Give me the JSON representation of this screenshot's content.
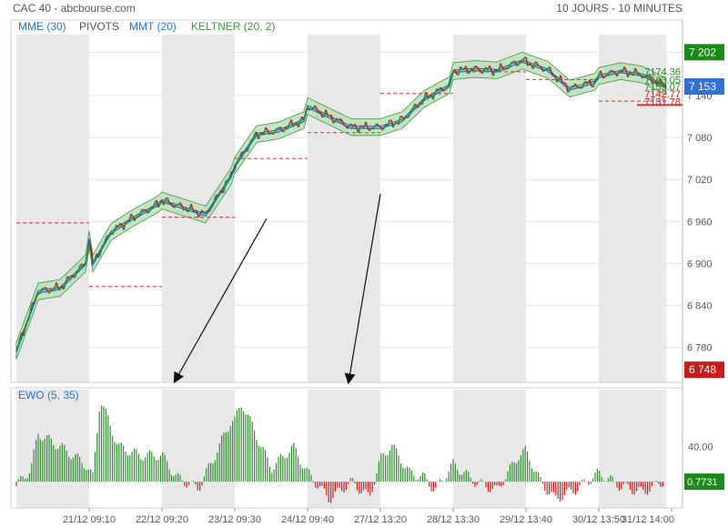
{
  "header": {
    "title": "CAC 40 - abcbourse.com",
    "period": "10 JOURS - 10 MINUTES"
  },
  "legend": [
    {
      "label": "MME (30)",
      "color": "#1f78d1"
    },
    {
      "label": "PIVOTS",
      "color": "#555555"
    },
    {
      "label": "MMT (20)",
      "color": "#1f78d1"
    },
    {
      "label": "KELTNER (20, 2)",
      "color": "#3a9a3a"
    }
  ],
  "badges": [
    {
      "label": "7 202",
      "value": 7202,
      "color": "#1b8a1b"
    },
    {
      "label": "7 153",
      "value": 7153,
      "color": "#2f6fd6"
    },
    {
      "label": "6 748",
      "value": 6748,
      "color": "#c91b1b"
    }
  ],
  "pivot_labels": [
    {
      "label": "7174.36",
      "value": 7174.36,
      "color": "#1b8a1b"
    },
    {
      "label": "7163.05",
      "value": 7163.05,
      "color": "#1b8a1b"
    },
    {
      "label": "7153.07",
      "value": 7153.07,
      "color": "#1b8a1b"
    },
    {
      "label": "7142.77",
      "value": 7142.77,
      "color": "#c91b1b"
    },
    {
      "label": "7131.78",
      "value": 7131.78,
      "color": "#c91b1b"
    }
  ],
  "ewo_panel": {
    "title": "EWO (5, 35)",
    "tick": "40.00",
    "value_badge": "0.7731",
    "badge_color": "#1b8a1b"
  },
  "colors": {
    "up": "#2e8b2e",
    "down": "#c62020",
    "ema": "#1f78d1",
    "keltner_fill": "#b9e0b9",
    "keltner_edge": "#3a9a3a",
    "session_shade": "#e8e8e8",
    "pivot_line": "#d23030"
  },
  "chart_data": [
    {
      "type": "line",
      "title": "CAC 40",
      "x_labels": [
        "21/12 09:10",
        "22/12 09:20",
        "23/12 09:30",
        "24/12 09:40",
        "27/12 13:20",
        "28/12 13:30",
        "29/12 13:40",
        "30/12 13:50",
        "31/12 14:00"
      ],
      "y_ticks": [
        7202,
        7140,
        7080,
        7020,
        6960,
        6900,
        6840,
        6780
      ],
      "y_tick_labels": [
        "7 202",
        "7 140",
        "7 080",
        "7 020",
        "6 960",
        "6 900",
        "6 840",
        "6 780"
      ],
      "ylim": [
        6730,
        7222
      ],
      "series": [
        {
          "name": "CAC 40",
          "x": [
            0.0,
            0.3,
            0.6,
            0.95,
            1.0,
            1.05,
            1.3,
            1.6,
            1.95,
            2.0,
            2.3,
            2.6,
            2.95,
            3.0,
            3.3,
            3.6,
            3.95,
            4.0,
            4.3,
            4.6,
            4.95,
            5.0,
            5.3,
            5.6,
            5.95,
            6.0,
            6.3,
            6.6,
            6.95,
            7.0,
            7.3,
            7.6,
            7.95,
            8.0,
            8.3,
            8.6,
            8.92
          ],
          "values": [
            6775,
            6860,
            6865,
            6900,
            6935,
            6900,
            6945,
            6965,
            6985,
            6990,
            6980,
            6970,
            7025,
            7040,
            7085,
            7090,
            7105,
            7125,
            7110,
            7095,
            7095,
            7095,
            7105,
            7135,
            7155,
            7175,
            7178,
            7176,
            7190,
            7188,
            7177,
            7150,
            7160,
            7168,
            7175,
            7170,
            7153
          ]
        }
      ],
      "keltner_width": 12,
      "pivot_levels": [
        {
          "value": 6958,
          "from": 0.0,
          "to": 1.0
        },
        {
          "value": 6867,
          "from": 1.0,
          "to": 2.0
        },
        {
          "value": 6966,
          "from": 2.0,
          "to": 3.0
        },
        {
          "value": 7050,
          "from": 3.0,
          "to": 4.0
        },
        {
          "value": 7087,
          "from": 4.0,
          "to": 5.0
        },
        {
          "value": 7143,
          "from": 5.0,
          "to": 6.0
        },
        {
          "value": 7174,
          "from": 6.0,
          "to": 7.0
        },
        {
          "value": 7163,
          "from": 7.0,
          "to": 8.0
        },
        {
          "value": 7132,
          "from": 8.0,
          "to": 8.93
        }
      ]
    },
    {
      "type": "bar",
      "title": "EWO (5, 35)",
      "y_ticks": [
        40
      ],
      "ylim": [
        -30,
        105
      ],
      "x": [
        0.0,
        0.2,
        0.3,
        0.6,
        0.95,
        1.05,
        1.15,
        1.4,
        1.7,
        2.0,
        2.2,
        2.5,
        2.7,
        2.95,
        3.0,
        3.1,
        3.5,
        3.8,
        4.0,
        4.3,
        4.6,
        4.85,
        5.0,
        5.15,
        5.4,
        5.6,
        5.75,
        6.0,
        6.3,
        6.6,
        6.9,
        7.0,
        7.2,
        7.4,
        7.7,
        8.0,
        8.3,
        8.6,
        8.92
      ],
      "values": [
        -5,
        15,
        55,
        40,
        20,
        5,
        95,
        40,
        30,
        30,
        5,
        -8,
        25,
        70,
        70,
        90,
        15,
        40,
        10,
        -20,
        0,
        -18,
        25,
        42,
        10,
        5,
        -10,
        20,
        0,
        -10,
        30,
        35,
        0,
        -20,
        -8,
        10,
        -5,
        -12,
        2
      ]
    }
  ]
}
